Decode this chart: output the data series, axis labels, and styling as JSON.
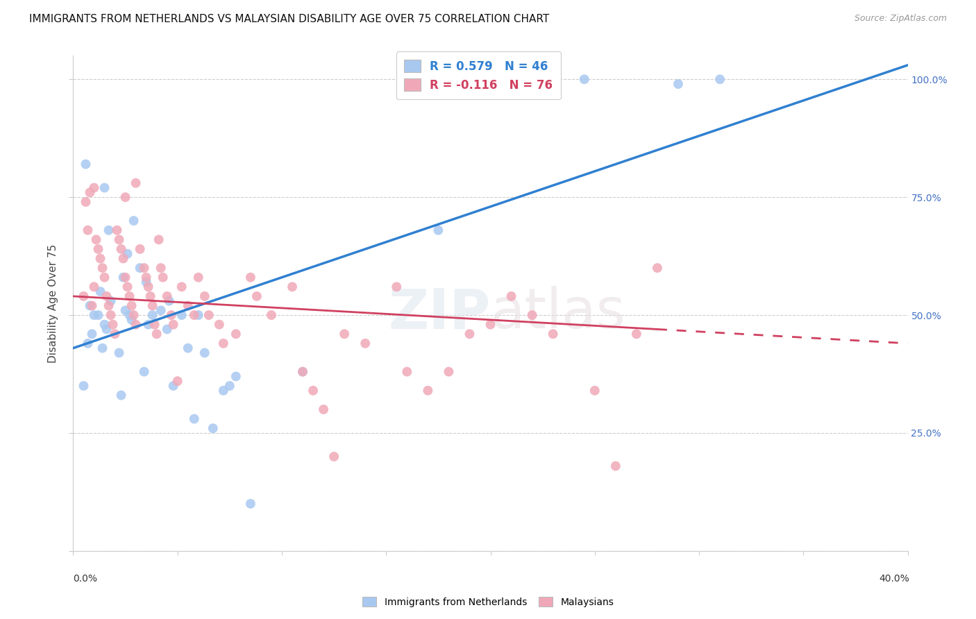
{
  "title": "IMMIGRANTS FROM NETHERLANDS VS MALAYSIAN DISABILITY AGE OVER 75 CORRELATION CHART",
  "source": "Source: ZipAtlas.com",
  "ylabel": "Disability Age Over 75",
  "blue_color": "#a8c8f0",
  "pink_color": "#f0a8b8",
  "blue_line_color": "#3080d0",
  "pink_line_color": "#d04060",
  "watermark": "ZIPatlas",
  "scatter_blue": [
    [
      1.0,
      50.0
    ],
    [
      1.5,
      48.0
    ],
    [
      0.8,
      52.0
    ],
    [
      1.8,
      53.0
    ],
    [
      2.5,
      51.0
    ],
    [
      2.8,
      49.0
    ],
    [
      1.6,
      47.0
    ],
    [
      0.9,
      46.0
    ],
    [
      0.7,
      44.0
    ],
    [
      1.4,
      43.0
    ],
    [
      2.2,
      42.0
    ],
    [
      1.3,
      55.0
    ],
    [
      2.4,
      58.0
    ],
    [
      3.2,
      60.0
    ],
    [
      2.6,
      63.0
    ],
    [
      3.5,
      57.0
    ],
    [
      1.7,
      68.0
    ],
    [
      2.9,
      70.0
    ],
    [
      3.8,
      50.0
    ],
    [
      3.6,
      48.0
    ],
    [
      4.2,
      51.0
    ],
    [
      4.5,
      47.0
    ],
    [
      3.4,
      38.0
    ],
    [
      4.8,
      35.0
    ],
    [
      5.2,
      50.0
    ],
    [
      4.6,
      53.0
    ],
    [
      6.0,
      50.0
    ],
    [
      5.5,
      43.0
    ],
    [
      6.3,
      42.0
    ],
    [
      5.8,
      28.0
    ],
    [
      6.7,
      26.0
    ],
    [
      7.2,
      34.0
    ],
    [
      7.5,
      35.0
    ],
    [
      0.6,
      82.0
    ],
    [
      1.2,
      50.0
    ],
    [
      0.5,
      35.0
    ],
    [
      2.3,
      33.0
    ],
    [
      2.7,
      50.0
    ],
    [
      7.8,
      37.0
    ],
    [
      8.5,
      10.0
    ],
    [
      11.0,
      38.0
    ],
    [
      17.5,
      68.0
    ],
    [
      24.5,
      100.0
    ],
    [
      31.0,
      100.0
    ],
    [
      29.0,
      99.0
    ],
    [
      1.5,
      77.0
    ]
  ],
  "scatter_pink": [
    [
      0.5,
      54.0
    ],
    [
      0.7,
      68.0
    ],
    [
      0.6,
      74.0
    ],
    [
      0.8,
      76.0
    ],
    [
      1.0,
      77.0
    ],
    [
      1.1,
      66.0
    ],
    [
      1.2,
      64.0
    ],
    [
      1.3,
      62.0
    ],
    [
      1.4,
      60.0
    ],
    [
      1.5,
      58.0
    ],
    [
      1.0,
      56.0
    ],
    [
      1.6,
      54.0
    ],
    [
      1.7,
      52.0
    ],
    [
      1.8,
      50.0
    ],
    [
      1.9,
      48.0
    ],
    [
      2.0,
      46.0
    ],
    [
      2.1,
      68.0
    ],
    [
      2.2,
      66.0
    ],
    [
      2.3,
      64.0
    ],
    [
      2.4,
      62.0
    ],
    [
      2.5,
      58.0
    ],
    [
      2.6,
      56.0
    ],
    [
      2.7,
      54.0
    ],
    [
      2.8,
      52.0
    ],
    [
      2.9,
      50.0
    ],
    [
      3.0,
      48.0
    ],
    [
      3.2,
      64.0
    ],
    [
      3.4,
      60.0
    ],
    [
      3.5,
      58.0
    ],
    [
      3.6,
      56.0
    ],
    [
      3.7,
      54.0
    ],
    [
      3.8,
      52.0
    ],
    [
      3.9,
      48.0
    ],
    [
      4.0,
      46.0
    ],
    [
      4.2,
      60.0
    ],
    [
      4.3,
      58.0
    ],
    [
      4.5,
      54.0
    ],
    [
      4.7,
      50.0
    ],
    [
      4.8,
      48.0
    ],
    [
      5.0,
      36.0
    ],
    [
      5.2,
      56.0
    ],
    [
      5.5,
      52.0
    ],
    [
      5.8,
      50.0
    ],
    [
      6.0,
      58.0
    ],
    [
      6.3,
      54.0
    ],
    [
      6.5,
      50.0
    ],
    [
      7.0,
      48.0
    ],
    [
      7.2,
      44.0
    ],
    [
      7.8,
      46.0
    ],
    [
      8.5,
      58.0
    ],
    [
      8.8,
      54.0
    ],
    [
      9.5,
      50.0
    ],
    [
      10.5,
      56.0
    ],
    [
      11.0,
      38.0
    ],
    [
      11.5,
      34.0
    ],
    [
      12.0,
      30.0
    ],
    [
      13.0,
      46.0
    ],
    [
      14.0,
      44.0
    ],
    [
      15.5,
      56.0
    ],
    [
      16.0,
      38.0
    ],
    [
      17.0,
      34.0
    ],
    [
      18.0,
      38.0
    ],
    [
      19.0,
      46.0
    ],
    [
      20.0,
      48.0
    ],
    [
      21.0,
      54.0
    ],
    [
      22.0,
      50.0
    ],
    [
      23.0,
      46.0
    ],
    [
      25.0,
      34.0
    ],
    [
      26.0,
      18.0
    ],
    [
      27.0,
      46.0
    ],
    [
      28.0,
      60.0
    ],
    [
      3.0,
      78.0
    ],
    [
      0.9,
      52.0
    ],
    [
      4.1,
      66.0
    ],
    [
      12.5,
      20.0
    ],
    [
      2.5,
      75.0
    ]
  ],
  "xlim": [
    0.0,
    40.0
  ],
  "ylim": [
    0.0,
    105.0
  ],
  "xtick_positions": [
    0.0,
    5.0,
    10.0,
    15.0,
    20.0,
    25.0,
    30.0,
    35.0,
    40.0
  ],
  "ytick_positions": [
    0.0,
    25.0,
    50.0,
    75.0,
    100.0
  ],
  "ytick_right_labels": [
    "",
    "25.0%",
    "50.0%",
    "75.0%",
    "100.0%"
  ],
  "bg_color": "#ffffff",
  "grid_color": "#cccccc",
  "blue_line_x0": 0.0,
  "blue_line_y0": 43.0,
  "blue_line_x1": 40.0,
  "blue_line_y1": 103.0,
  "pink_line_x0": 0.0,
  "pink_line_y0": 54.0,
  "pink_line_x1": 40.0,
  "pink_line_y1": 44.0,
  "pink_dash_start_x": 28.0
}
